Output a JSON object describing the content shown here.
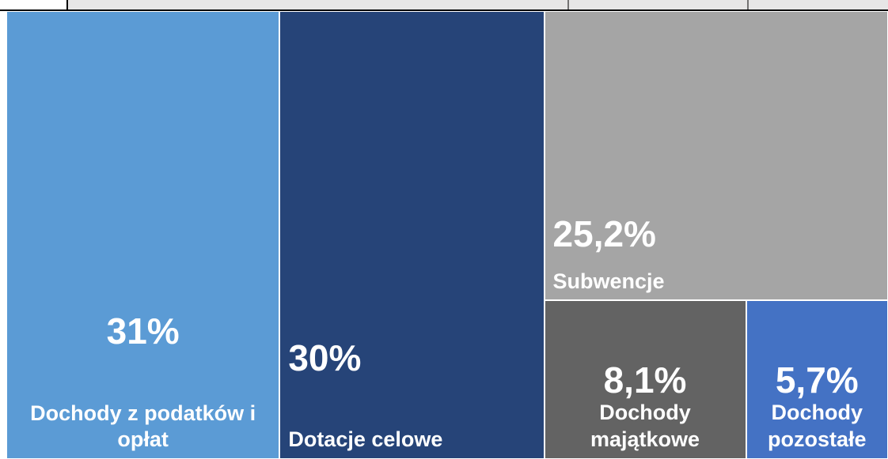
{
  "chart_data": {
    "type": "treemap",
    "categories": [
      "Dochody z podatków i opłat",
      "Dotacje celowe",
      "Subwencje",
      "Dochody majątkowe",
      "Dochody pozostałe"
    ],
    "values": [
      31,
      30,
      25.2,
      8.1,
      5.7
    ],
    "value_labels": [
      "31%",
      "30%",
      "25,2%",
      "8,1%",
      "5,7%"
    ],
    "colors": [
      "#5b9bd5",
      "#264478",
      "#a5a5a5",
      "#636363",
      "#4472c4"
    ]
  }
}
